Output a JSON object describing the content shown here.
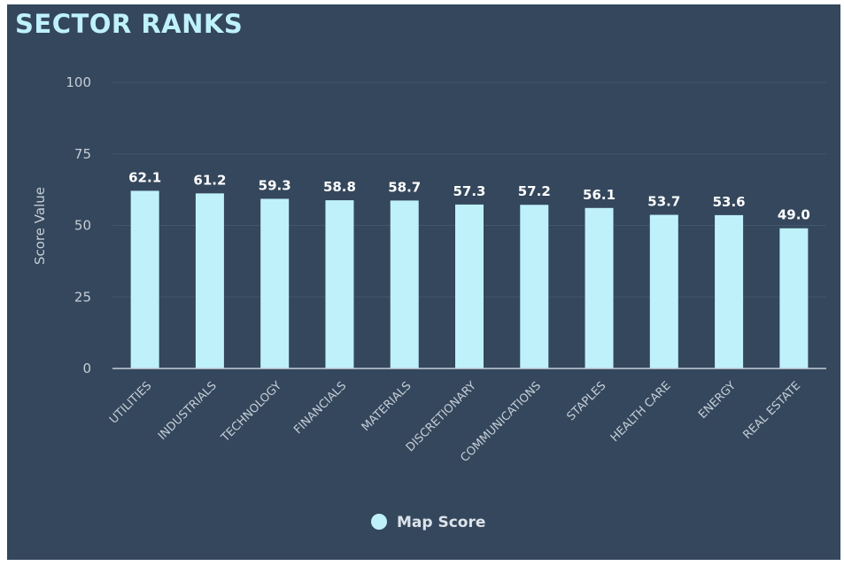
{
  "header": {
    "title": "SECTOR RANKS"
  },
  "colors": {
    "background": "#34475c",
    "bar": "#bff1fb",
    "title": "#bff1fb",
    "grid": "#43566b",
    "axis_text": "#c6ced8"
  },
  "chart_data": {
    "type": "bar",
    "title": "SECTOR RANKS",
    "xlabel": "",
    "ylabel": "Score Value",
    "ylim": [
      0,
      100
    ],
    "yticks": [
      0,
      25,
      50,
      75,
      100
    ],
    "categories": [
      "UTILITIES",
      "INDUSTRIALS",
      "TECHNOLOGY",
      "FINANCIALS",
      "MATERIALS",
      "DISCRETIONARY",
      "COMMUNICATIONS",
      "STAPLES",
      "HEALTH CARE",
      "ENERGY",
      "REAL ESTATE"
    ],
    "series": [
      {
        "name": "Map Score",
        "values": [
          62.1,
          61.2,
          59.3,
          58.8,
          58.7,
          57.3,
          57.2,
          56.1,
          53.7,
          53.6,
          49.0
        ]
      }
    ],
    "data_labels": [
      "62.1",
      "61.2",
      "59.3",
      "58.8",
      "58.7",
      "57.3",
      "57.2",
      "56.1",
      "53.7",
      "53.6",
      "49.0"
    ],
    "grid": true,
    "legend": "bottom-center"
  }
}
